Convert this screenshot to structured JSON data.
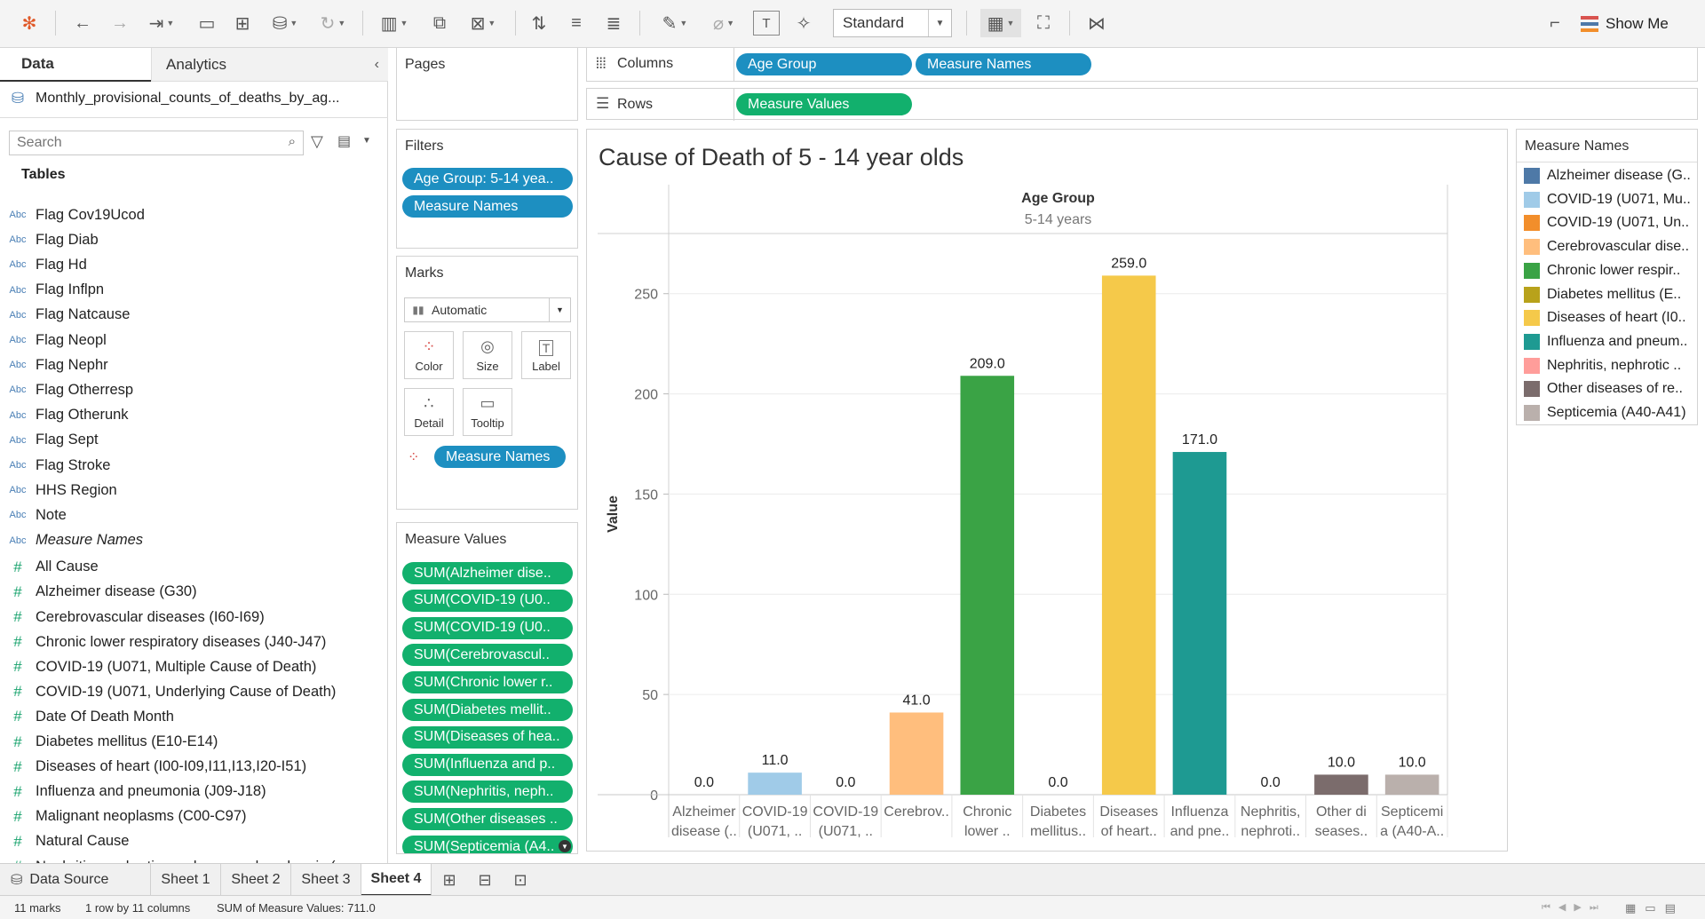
{
  "toolbar": {
    "format_select": "Standard",
    "show_me": "Show Me"
  },
  "data_pane": {
    "tab_data": "Data",
    "tab_analytics": "Analytics",
    "datasource": "Monthly_provisional_counts_of_deaths_by_ag...",
    "search_placeholder": "Search",
    "tables_heading": "Tables",
    "dimensions": [
      {
        "type": "Abc",
        "name": "Flag Cov19Ucod"
      },
      {
        "type": "Abc",
        "name": "Flag Diab"
      },
      {
        "type": "Abc",
        "name": "Flag Hd"
      },
      {
        "type": "Abc",
        "name": "Flag Inflpn"
      },
      {
        "type": "Abc",
        "name": "Flag Natcause"
      },
      {
        "type": "Abc",
        "name": "Flag Neopl"
      },
      {
        "type": "Abc",
        "name": "Flag Nephr"
      },
      {
        "type": "Abc",
        "name": "Flag Otherresp"
      },
      {
        "type": "Abc",
        "name": "Flag Otherunk"
      },
      {
        "type": "Abc",
        "name": "Flag Sept"
      },
      {
        "type": "Abc",
        "name": "Flag Stroke"
      },
      {
        "type": "Abc",
        "name": "HHS Region"
      },
      {
        "type": "Abc",
        "name": "Note"
      },
      {
        "type": "Abc",
        "name": "Measure Names"
      }
    ],
    "measures": [
      {
        "type": "#",
        "name": "All Cause"
      },
      {
        "type": "#",
        "name": "Alzheimer disease (G30)"
      },
      {
        "type": "#",
        "name": "Cerebrovascular diseases (I60-I69)"
      },
      {
        "type": "#",
        "name": "Chronic lower respiratory diseases (J40-J47)"
      },
      {
        "type": "#",
        "name": "COVID-19 (U071, Multiple Cause of Death)"
      },
      {
        "type": "#",
        "name": "COVID-19 (U071, Underlying Cause of Death)"
      },
      {
        "type": "#",
        "name": "Date Of Death Month"
      },
      {
        "type": "#",
        "name": "Diabetes mellitus (E10-E14)"
      },
      {
        "type": "#",
        "name": "Diseases of heart (I00-I09,I11,I13,I20-I51)"
      },
      {
        "type": "#",
        "name": "Influenza and pneumonia (J09-J18)"
      },
      {
        "type": "#",
        "name": "Malignant neoplasms (C00-C97)"
      },
      {
        "type": "#",
        "name": "Natural Cause"
      },
      {
        "type": "#",
        "name": "Nephritis, nephrotic syndrome and nephrosis (..."
      }
    ]
  },
  "pages_title": "Pages",
  "filters": {
    "title": "Filters",
    "items": [
      "Age Group: 5-14 yea..",
      "Measure Names"
    ]
  },
  "marks": {
    "title": "Marks",
    "type": "Automatic",
    "buttons": [
      "Color",
      "Size",
      "Label",
      "Detail",
      "Tooltip"
    ],
    "color_pill": "Measure Names"
  },
  "measure_values": {
    "title": "Measure Values",
    "items": [
      "SUM(Alzheimer dise..",
      "SUM(COVID-19 (U0..",
      "SUM(COVID-19 (U0..",
      "SUM(Cerebrovascul..",
      "SUM(Chronic lower r..",
      "SUM(Diabetes mellit..",
      "SUM(Diseases of hea..",
      "SUM(Influenza and p..",
      "SUM(Nephritis, neph..",
      "SUM(Other diseases ..",
      "SUM(Septicemia (A4.."
    ]
  },
  "columns": {
    "label": "Columns",
    "pills": [
      "Age Group",
      "Measure Names"
    ]
  },
  "rows": {
    "label": "Rows",
    "pills": [
      "Measure Values"
    ]
  },
  "chart_data": {
    "type": "bar",
    "title": "Cause of Death of 5 - 14 year olds",
    "header_field": "Age Group",
    "header_value": "5-14 years",
    "ylabel": "Value",
    "ylim": [
      0,
      280
    ],
    "yticks": [
      0,
      50,
      100,
      150,
      200,
      250
    ],
    "categories": [
      [
        "Alzheimer",
        "disease (.."
      ],
      [
        "COVID-19",
        "(U071, .."
      ],
      [
        "COVID-19",
        "(U071, .."
      ],
      [
        "Cerebrov..",
        ""
      ],
      [
        "Chronic",
        "lower .."
      ],
      [
        "Diabetes",
        "mellitus.."
      ],
      [
        "Diseases",
        "of heart.."
      ],
      [
        "Influenza",
        "and pne.."
      ],
      [
        "Nephritis,",
        "nephroti.."
      ],
      [
        "Other di",
        "seases.."
      ],
      [
        "Septicemi",
        "a (A40-A.."
      ]
    ],
    "values": [
      0,
      11,
      0,
      41,
      209,
      0,
      259,
      171,
      0,
      10,
      10
    ],
    "value_labels": [
      "0.0",
      "11.0",
      "0.0",
      "41.0",
      "209.0",
      "0.0",
      "259.0",
      "171.0",
      "0.0",
      "10.0",
      "10.0"
    ],
    "colors": [
      "#4e79a7",
      "#a0cbe8",
      "#f28e2b",
      "#ffbe7d",
      "#3aa345",
      "#b8a21b",
      "#f5c94a",
      "#1e9a92",
      "#ff9d9a",
      "#7b6c6c",
      "#bab0ac"
    ]
  },
  "legend": {
    "title": "Measure Names",
    "items": [
      {
        "label": "Alzheimer disease (G..",
        "color": "#4e79a7"
      },
      {
        "label": "COVID-19 (U071, Mu..",
        "color": "#a0cbe8"
      },
      {
        "label": "COVID-19 (U071, Un..",
        "color": "#f28e2b"
      },
      {
        "label": "Cerebrovascular dise..",
        "color": "#ffbe7d"
      },
      {
        "label": "Chronic lower respir..",
        "color": "#3aa345"
      },
      {
        "label": "Diabetes mellitus (E..",
        "color": "#b8a21b"
      },
      {
        "label": "Diseases of heart (I0..",
        "color": "#f5c94a"
      },
      {
        "label": "Influenza and pneum..",
        "color": "#1e9a92"
      },
      {
        "label": "Nephritis, nephrotic ..",
        "color": "#ff9d9a"
      },
      {
        "label": "Other diseases of re..",
        "color": "#7b6c6c"
      },
      {
        "label": "Septicemia (A40-A41)",
        "color": "#bab0ac"
      }
    ]
  },
  "tabs": {
    "data_source": "Data Source",
    "sheets": [
      "Sheet 1",
      "Sheet 2",
      "Sheet 3",
      "Sheet 4"
    ],
    "active": "Sheet 4"
  },
  "status": {
    "marks": "11 marks",
    "dims": "1 row by 11 columns",
    "sum": "SUM of Measure Values: 711.0"
  }
}
